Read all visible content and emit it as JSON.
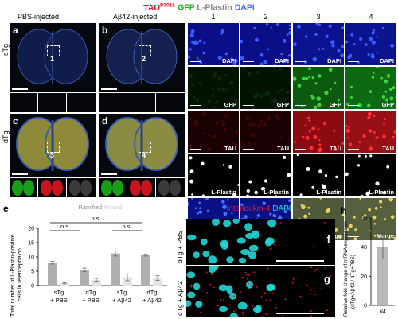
{
  "header": {
    "tau": "TAU",
    "tau_sup": "P301L",
    "gfp": "GFP",
    "lplastin": "L-Plastin",
    "dapi": "DAPI"
  },
  "left": {
    "col_pbs": "PBS-injected",
    "col_ab": "Aβ42-injected",
    "row_stg": "sTg",
    "row_dtg": "dTg",
    "letters": [
      "a",
      "b",
      "c",
      "d"
    ],
    "boxes": [
      "1",
      "2",
      "3",
      "4"
    ]
  },
  "grid": {
    "columns": [
      "1",
      "2",
      "3",
      "4"
    ],
    "rows": [
      "DAPI",
      "GFP",
      "TAU",
      "L-Plastin",
      "Merge"
    ]
  },
  "panel_e": {
    "letter": "e",
    "legend_ramified": "Ramified",
    "legend_round": "Round",
    "ns": "n.s.",
    "ylabel_1": "Total number of L-Plastin-positive",
    "ylabel_2": "cells in telencephalon",
    "yticks": [
      "0",
      "5",
      "10",
      "15",
      "20"
    ]
  },
  "chart_data": {
    "type": "bar",
    "categories": [
      "sTg + PBS",
      "dTg + PBS",
      "sTg + Aβ42",
      "dTg + Aβ42"
    ],
    "ylabel": "Total number of L-Plastin-positive cells in telencephalon",
    "ylim": [
      0,
      20
    ],
    "series": [
      {
        "name": "Ramified",
        "values": [
          8,
          5.5,
          11.2,
          10.6
        ],
        "errors": [
          0.5,
          0.6,
          0.9,
          0.3
        ],
        "color": "#b0b0b0"
      },
      {
        "name": "Round",
        "values": [
          0.8,
          2,
          2.9,
          2.6
        ],
        "errors": [
          0.2,
          0.5,
          1.2,
          0.8
        ],
        "color": "#e4e4e4"
      }
    ],
    "legend": "top"
  },
  "panel_f": {
    "legend_il4": "Interleukin-4",
    "legend_dapi": "DAPI",
    "row1": "dTg + PBS",
    "row2": "dTg + Aβ42",
    "letter_f": "f",
    "letter_g": "g"
  },
  "panel_h": {
    "letter": "h",
    "ylabel_1": "Relative fold change of mRNA expression",
    "ylabel_2": "(dTg+Aβ42 / dTg+PBS)",
    "yticks": [
      "0",
      "20",
      "40",
      "60"
    ],
    "xtick": "il4"
  },
  "chart_data_h": {
    "type": "bar",
    "categories": [
      "il4"
    ],
    "values": [
      40
    ],
    "errors": [
      8
    ],
    "ylim": [
      0,
      60
    ],
    "ylabel": "Relative fold change of mRNA expression (dTg+Aβ42 / dTg+PBS)"
  },
  "colors": {
    "red": "#e8152b",
    "green": "#19b21b",
    "blue": "#3f6bff",
    "cyan": "#1fd6d6"
  }
}
